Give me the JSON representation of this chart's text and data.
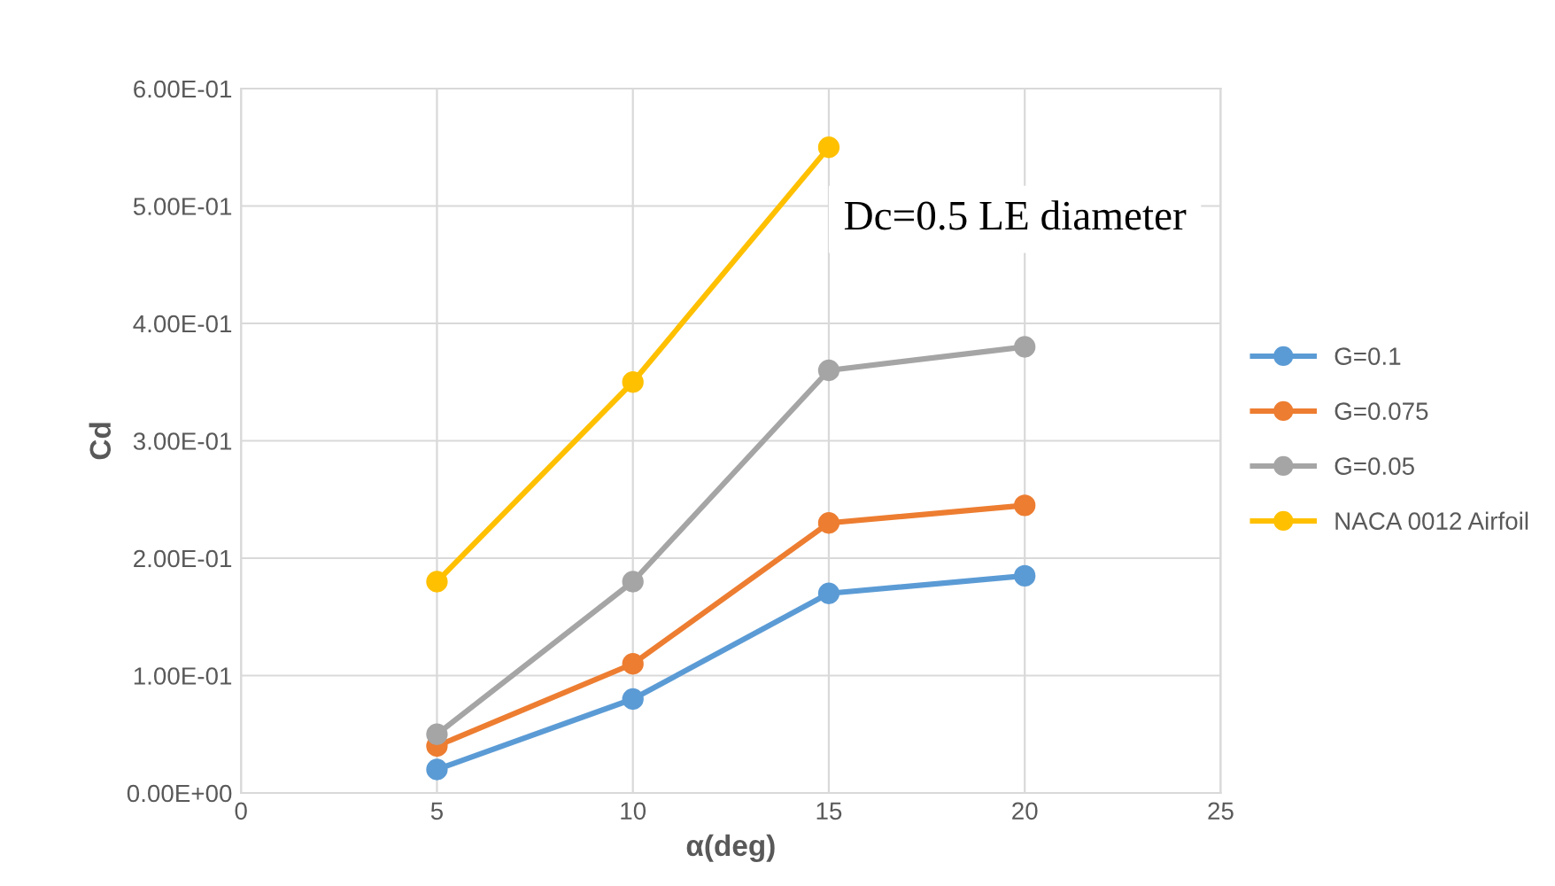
{
  "chart_data": {
    "type": "line",
    "xlabel": "α(deg)",
    "ylabel": "Cd",
    "x": [
      5,
      10,
      15,
      20
    ],
    "series": [
      {
        "name": "G=0.1",
        "color": "#5b9bd5",
        "values": [
          0.02,
          0.08,
          0.17,
          0.185
        ]
      },
      {
        "name": "G=0.075",
        "color": "#ed7d31",
        "values": [
          0.04,
          0.11,
          0.23,
          0.245
        ]
      },
      {
        "name": "G=0.05",
        "color": "#a5a5a5",
        "values": [
          0.05,
          0.18,
          0.36,
          0.38
        ]
      },
      {
        "name": "NACA 0012 Airfoil",
        "color": "#ffc000",
        "values": [
          0.18,
          0.35,
          0.55,
          null
        ]
      }
    ],
    "xlim": [
      0,
      25
    ],
    "xticks": [
      0,
      5,
      10,
      15,
      20,
      25
    ],
    "ylim": [
      0,
      0.6
    ],
    "yticks": [
      {
        "value": 0,
        "label": "0.00E+00"
      },
      {
        "value": 0.1,
        "label": "1.00E-01"
      },
      {
        "value": 0.2,
        "label": "2.00E-01"
      },
      {
        "value": 0.3,
        "label": "3.00E-01"
      },
      {
        "value": 0.4,
        "label": "4.00E-01"
      },
      {
        "value": 0.5,
        "label": "5.00E-01"
      },
      {
        "value": 0.6,
        "label": "6.00E-01"
      }
    ],
    "grid": true,
    "legend": "right",
    "marker": "circle",
    "line_style": "solid",
    "annotations": [
      "Dc=0.5 LE diameter"
    ]
  }
}
